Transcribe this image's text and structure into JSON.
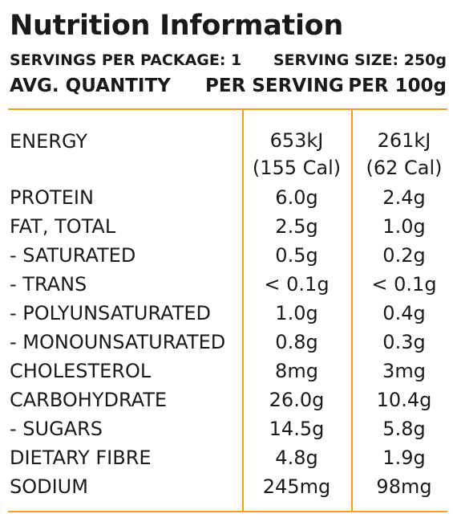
{
  "panel": {
    "title": "Nutrition Information",
    "servings_per_package": "SERVINGS PER PACKAGE: 1",
    "serving_size": "SERVING SIZE: 250g",
    "col_quantity": "AVG. QUANTITY",
    "col_per_serving": "PER SERVING",
    "col_per_100g": "PER 100g"
  },
  "colors": {
    "rule": "#f0a020",
    "text": "#1a1a1a"
  },
  "rows": [
    {
      "name": "ENERGY",
      "per_serving": "653kJ",
      "per_serving_sub": "(155 Cal)",
      "per_100g": "261kJ",
      "per_100g_sub": "(62 Cal)"
    },
    {
      "name": "PROTEIN",
      "per_serving": "6.0g",
      "per_100g": "2.4g"
    },
    {
      "name": "FAT, TOTAL",
      "per_serving": "2.5g",
      "per_100g": "1.0g"
    },
    {
      "name": "- SATURATED",
      "per_serving": "0.5g",
      "per_100g": "0.2g"
    },
    {
      "name": "- TRANS",
      "per_serving": "< 0.1g",
      "per_100g": "< 0.1g"
    },
    {
      "name": "- POLYUNSATURATED",
      "per_serving": "1.0g",
      "per_100g": "0.4g"
    },
    {
      "name": "- MONOUNSATURATED",
      "per_serving": "0.8g",
      "per_100g": "0.3g"
    },
    {
      "name": "CHOLESTEROL",
      "per_serving": "8mg",
      "per_100g": "3mg"
    },
    {
      "name": "CARBOHYDRATE",
      "per_serving": "26.0g",
      "per_100g": "10.4g"
    },
    {
      "name": "- SUGARS",
      "per_serving": "14.5g",
      "per_100g": "5.8g"
    },
    {
      "name": "DIETARY FIBRE",
      "per_serving": "4.8g",
      "per_100g": "1.9g"
    },
    {
      "name": "SODIUM",
      "per_serving": "245mg",
      "per_100g": "98mg"
    }
  ]
}
